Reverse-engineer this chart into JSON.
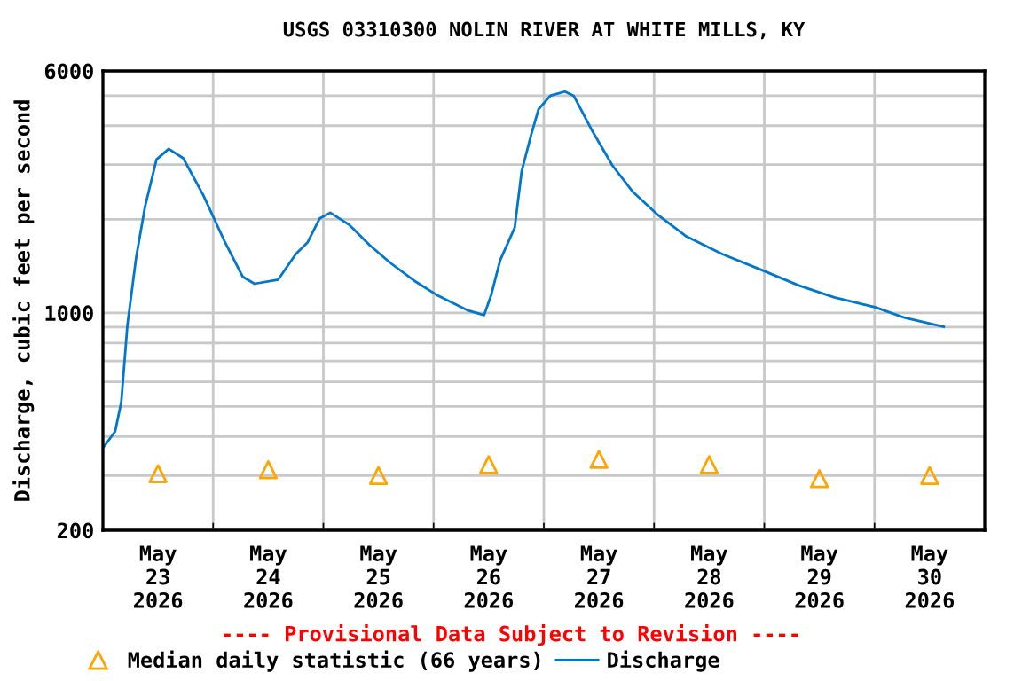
{
  "chart_data": {
    "type": "line",
    "title": "USGS 03310300 NOLIN RIVER AT WHITE MILLS, KY",
    "ylabel": "Discharge, cubic feet per second",
    "annotations": [
      "---- Provisional Data Subject to Revision ----"
    ],
    "log": "y",
    "grid": true,
    "legend": "bottom",
    "xlim": [
      "2026-05-23T00:00",
      "2026-05-31T00:00"
    ],
    "xticks": [
      {
        "value": "2026-05-23T12:00",
        "label": "May\n23\n2026"
      },
      {
        "value": "2026-05-24T12:00",
        "label": "May\n24\n2026"
      },
      {
        "value": "2026-05-25T12:00",
        "label": "May\n25\n2026"
      },
      {
        "value": "2026-05-26T12:00",
        "label": "May\n26\n2026"
      },
      {
        "value": "2026-05-27T12:00",
        "label": "May\n27\n2026"
      },
      {
        "value": "2026-05-28T12:00",
        "label": "May\n28\n2026"
      },
      {
        "value": "2026-05-29T12:00",
        "label": "May\n29\n2026"
      },
      {
        "value": "2026-05-30T12:00",
        "label": "May\n30\n2026"
      },
      {
        "value": "2026-05-24T00:00",
        "label": null
      },
      {
        "value": "2026-05-25T00:00",
        "label": null
      },
      {
        "value": "2026-05-26T00:00",
        "label": null
      },
      {
        "value": "2026-05-27T00:00",
        "label": null
      },
      {
        "value": "2026-05-28T00:00",
        "label": null
      },
      {
        "value": "2026-05-29T00:00",
        "label": null
      },
      {
        "value": "2026-05-30T00:00",
        "label": null
      }
    ],
    "ylim": [
      200,
      6000
    ],
    "yticks": [
      200,
      1000,
      6000,
      {
        "value": 300,
        "label": null
      },
      {
        "value": 400,
        "label": null
      },
      {
        "value": 500,
        "label": null
      },
      {
        "value": 600,
        "label": null
      },
      {
        "value": 700,
        "label": null
      },
      {
        "value": 800,
        "label": null
      },
      {
        "value": 900,
        "label": null
      },
      {
        "value": 2000,
        "label": null
      },
      {
        "value": 3000,
        "label": null
      },
      {
        "value": 4000,
        "label": null
      },
      {
        "value": 5000,
        "label": null
      }
    ],
    "series": [
      {
        "name": "Median daily statistic (66 years)",
        "type": "scatter",
        "marker": "triangle",
        "color": "#ffa500",
        "x": [
          "2026-05-23T12:00",
          "2026-05-24T12:00",
          "2026-05-25T12:00",
          "2026-05-26T12:00",
          "2026-05-27T12:00",
          "2026-05-28T12:00",
          "2026-05-29T12:00",
          "2026-05-30T12:00"
        ],
        "values": [
          304,
          313,
          300,
          325,
          338,
          325,
          293,
          300
        ]
      },
      {
        "name": "Discharge",
        "color": "#0077cc",
        "line_style": "solid",
        "x": [
          "2026-05-23T00:15",
          "2026-05-23T02:40",
          "2026-05-23T04:00",
          "2026-05-23T05:20",
          "2026-05-23T07:15",
          "2026-05-23T09:10",
          "2026-05-23T11:40",
          "2026-05-23T14:20",
          "2026-05-23T17:30",
          "2026-05-23T21:50",
          "2026-05-24T02:35",
          "2026-05-24T06:25",
          "2026-05-24T09:00",
          "2026-05-24T14:10",
          "2026-05-24T18:00",
          "2026-05-24T20:35",
          "2026-05-24T23:10",
          "2026-05-25T01:30",
          "2026-05-25T05:35",
          "2026-05-25T10:05",
          "2026-05-25T14:35",
          "2026-05-25T19:45",
          "2026-05-26T00:55",
          "2026-05-26T07:20",
          "2026-05-26T11:00",
          "2026-05-26T12:30",
          "2026-05-26T14:30",
          "2026-05-26T17:40",
          "2026-05-26T19:10",
          "2026-05-26T21:15",
          "2026-05-26T22:50",
          "2026-05-27T01:25",
          "2026-05-27T04:35",
          "2026-05-27T06:30",
          "2026-05-27T10:25",
          "2026-05-27T14:55",
          "2026-05-27T19:25",
          "2026-05-28T00:35",
          "2026-05-28T07:00",
          "2026-05-28T14:50",
          "2026-05-28T23:50",
          "2026-05-29T07:30",
          "2026-05-29T15:15",
          "2026-05-30T00:15",
          "2026-05-30T06:40",
          "2026-05-30T15:05"
        ],
        "values": [
          372,
          416,
          517,
          914,
          1512,
          2193,
          3115,
          3370,
          3142,
          2395,
          1687,
          1308,
          1241,
          1280,
          1546,
          1687,
          2010,
          2100,
          1922,
          1651,
          1448,
          1270,
          1137,
          1020,
          984,
          1137,
          1478,
          1882,
          2852,
          3742,
          4516,
          4996,
          5150,
          4996,
          3878,
          2982,
          2448,
          2080,
          1763,
          1546,
          1366,
          1226,
          1122,
          1042,
          964,
          902
        ]
      }
    ]
  }
}
